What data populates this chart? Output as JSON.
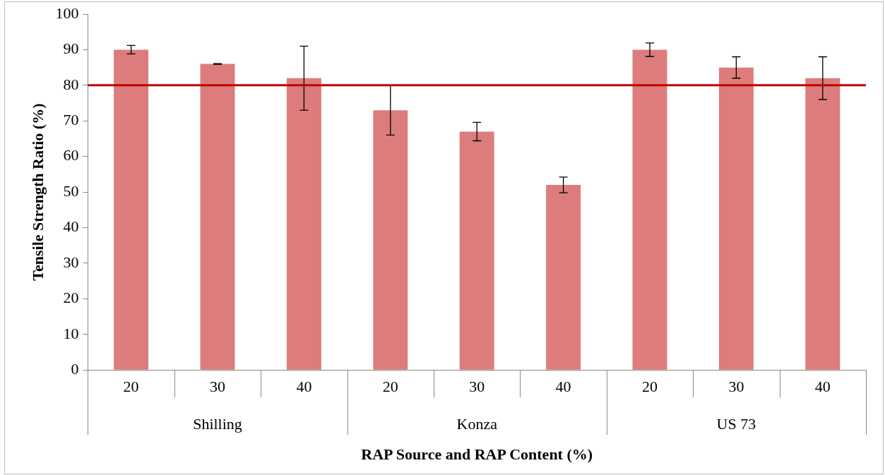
{
  "chart_data": {
    "type": "bar",
    "xlabel": "RAP Source and RAP Content (%)",
    "ylabel": "Tensile Strength Ratio (%)",
    "categories": [
      "20",
      "30",
      "40",
      "20",
      "30",
      "40",
      "20",
      "30",
      "40"
    ],
    "values": [
      90,
      86,
      82,
      73,
      67,
      52,
      90,
      85,
      82
    ],
    "errors": [
      1.2,
      0.1,
      9,
      7,
      2.6,
      2.2,
      1.9,
      3,
      6
    ],
    "color": "#dd7c7c",
    "ylim": [
      0,
      100
    ],
    "yticks": [
      0,
      10,
      20,
      30,
      40,
      50,
      60,
      70,
      80,
      90,
      100
    ],
    "grid": false,
    "legend": false,
    "ref_lines": [
      {
        "axis": "y",
        "value": 80,
        "color": "#c00000"
      }
    ],
    "annotations": [
      "Shilling",
      "Konza",
      "US 73"
    ]
  }
}
